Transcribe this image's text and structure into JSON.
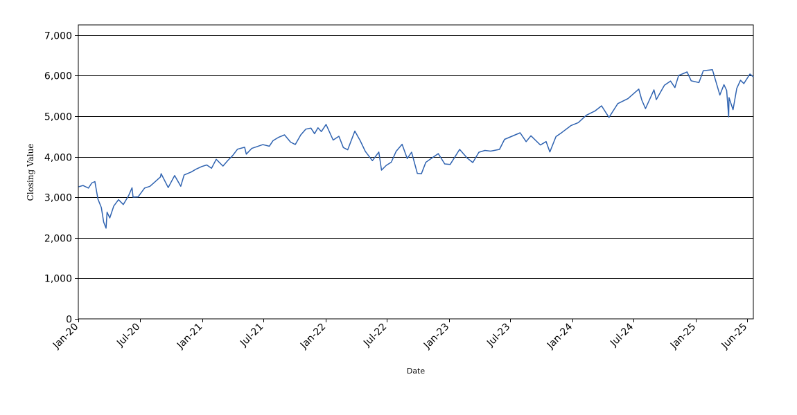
{
  "chart_data": {
    "type": "line",
    "title": "",
    "xlabel": "Date",
    "ylabel": "Closing Value",
    "grid": true,
    "grid_axis": "y",
    "ylim": [
      0,
      7250
    ],
    "xlim": [
      "2020-01-01",
      "2025-06-20"
    ],
    "y_ticks": [
      0,
      1000,
      2000,
      3000,
      4000,
      5000,
      6000,
      7000
    ],
    "y_tick_labels": [
      "0",
      "1,000",
      "2,000",
      "3,000",
      "4,000",
      "5,000",
      "6,000",
      "7,000"
    ],
    "x_ticks": [
      "2020-01-01",
      "2020-07-01",
      "2021-01-01",
      "2021-07-01",
      "2022-01-01",
      "2022-07-01",
      "2023-01-01",
      "2023-07-01",
      "2024-01-01",
      "2024-07-01",
      "2025-01-01",
      "2025-06-01"
    ],
    "x_tick_labels": [
      "Jan-20",
      "Jul-20",
      "Jan-21",
      "Jul-21",
      "Jan-22",
      "Jul-22",
      "Jan-23",
      "Jul-23",
      "Jan-24",
      "Jul-24",
      "Jan-25",
      "Jun-25"
    ],
    "line_color": "#2e62b0",
    "series": [
      {
        "x": [
          "2020-01-02",
          "2020-01-15",
          "2020-01-31",
          "2020-02-10",
          "2020-02-19",
          "2020-02-28",
          "2020-03-09",
          "2020-03-16",
          "2020-03-23",
          "2020-03-26",
          "2020-04-03",
          "2020-04-15",
          "2020-04-29",
          "2020-05-13",
          "2020-05-29",
          "2020-06-08",
          "2020-06-11",
          "2020-06-26",
          "2020-07-15",
          "2020-07-31",
          "2020-08-14",
          "2020-08-31",
          "2020-09-02",
          "2020-09-23",
          "2020-10-12",
          "2020-10-30",
          "2020-11-09",
          "2020-11-30",
          "2020-12-15",
          "2020-12-31",
          "2021-01-15",
          "2021-01-29",
          "2021-02-12",
          "2021-03-04",
          "2021-03-19",
          "2021-04-01",
          "2021-04-16",
          "2021-05-07",
          "2021-05-12",
          "2021-05-28",
          "2021-06-15",
          "2021-06-30",
          "2021-07-19",
          "2021-07-30",
          "2021-08-16",
          "2021-09-02",
          "2021-09-20",
          "2021-10-04",
          "2021-10-20",
          "2021-11-04",
          "2021-11-19",
          "2021-11-30",
          "2021-12-10",
          "2021-12-20",
          "2022-01-03",
          "2022-01-24",
          "2022-02-10",
          "2022-02-23",
          "2022-03-08",
          "2022-03-29",
          "2022-04-14",
          "2022-04-29",
          "2022-05-20",
          "2022-06-08",
          "2022-06-16",
          "2022-06-30",
          "2022-07-15",
          "2022-07-29",
          "2022-08-16",
          "2022-08-31",
          "2022-09-13",
          "2022-09-30",
          "2022-10-12",
          "2022-10-25",
          "2022-11-10",
          "2022-12-01",
          "2022-12-20",
          "2023-01-05",
          "2023-02-02",
          "2023-02-24",
          "2023-03-13",
          "2023-03-31",
          "2023-04-18",
          "2023-05-05",
          "2023-05-31",
          "2023-06-15",
          "2023-07-31",
          "2023-08-18",
          "2023-09-01",
          "2023-09-29",
          "2023-10-16",
          "2023-10-27",
          "2023-11-14",
          "2023-12-01",
          "2023-12-29",
          "2024-01-19",
          "2024-02-12",
          "2024-03-08",
          "2024-03-28",
          "2024-04-19",
          "2024-05-15",
          "2024-06-14",
          "2024-07-16",
          "2024-07-25",
          "2024-08-05",
          "2024-08-30",
          "2024-09-06",
          "2024-09-30",
          "2024-10-18",
          "2024-10-31",
          "2024-11-11",
          "2024-12-06",
          "2024-12-18",
          "2025-01-10",
          "2025-01-23",
          "2025-02-19",
          "2025-03-13",
          "2025-03-25",
          "2025-04-02",
          "2025-04-08",
          "2025-04-09",
          "2025-04-21",
          "2025-05-02",
          "2025-05-13",
          "2025-05-23",
          "2025-06-10",
          "2025-06-20"
        ],
        "y": [
          3258,
          3289,
          3226,
          3352,
          3386,
          2954,
          2746,
          2386,
          2237,
          2630,
          2489,
          2784,
          2939,
          2820,
          3044,
          3232,
          3002,
          3009,
          3226,
          3271,
          3373,
          3500,
          3580,
          3237,
          3535,
          3270,
          3550,
          3622,
          3695,
          3756,
          3795,
          3714,
          3935,
          3768,
          3913,
          4020,
          4185,
          4232,
          4063,
          4204,
          4255,
          4297,
          4258,
          4395,
          4479,
          4537,
          4358,
          4300,
          4536,
          4680,
          4705,
          4567,
          4712,
          4620,
          4796,
          4410,
          4504,
          4225,
          4170,
          4631,
          4392,
          4131,
          3901,
          4115,
          3667,
          3785,
          3863,
          4130,
          4305,
          3955,
          4110,
          3585,
          3577,
          3860,
          3956,
          4076,
          3821,
          3808,
          4179,
          3970,
          3855,
          4109,
          4154,
          4136,
          4180,
          4426,
          4589,
          4370,
          4516,
          4288,
          4373,
          4117,
          4495,
          4594,
          4770,
          4840,
          5022,
          5124,
          5254,
          4967,
          5308,
          5431,
          5667,
          5399,
          5186,
          5648,
          5408,
          5762,
          5864,
          5705,
          6001,
          6090,
          5872,
          5827,
          6119,
          6144,
          5521,
          5776,
          5633,
          4982,
          5457,
          5158,
          5686,
          5886,
          5803,
          6038,
          5967
        ]
      }
    ]
  }
}
